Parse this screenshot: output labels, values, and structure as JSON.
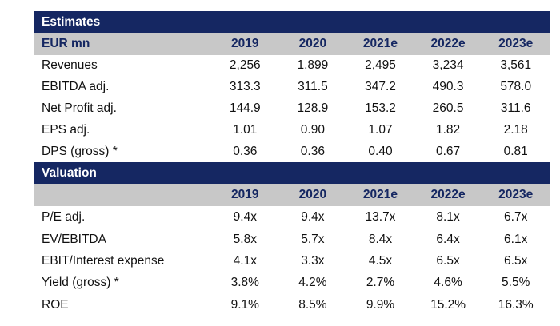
{
  "estimates": {
    "section_title": "Estimates",
    "header_label": "EUR mn",
    "years": [
      "2019",
      "2020",
      "2021e",
      "2022e",
      "2023e"
    ],
    "rows": [
      {
        "label": "Revenues",
        "values": [
          "2,256",
          "1,899",
          "2,495",
          "3,234",
          "3,561"
        ]
      },
      {
        "label": "EBITDA adj.",
        "values": [
          "313.3",
          "311.5",
          "347.2",
          "490.3",
          "578.0"
        ]
      },
      {
        "label": "Net Profit adj.",
        "values": [
          "144.9",
          "128.9",
          "153.2",
          "260.5",
          "311.6"
        ]
      },
      {
        "label": "EPS adj.",
        "values": [
          "1.01",
          "0.90",
          "1.07",
          "1.82",
          "2.18"
        ]
      },
      {
        "label": "DPS (gross) *",
        "values": [
          "0.36",
          "0.36",
          "0.40",
          "0.67",
          "0.81"
        ]
      }
    ]
  },
  "valuation": {
    "section_title": "Valuation",
    "header_label": "",
    "years": [
      "2019",
      "2020",
      "2021e",
      "2022e",
      "2023e"
    ],
    "rows": [
      {
        "label": "P/E adj.",
        "values": [
          "9.4x",
          "9.4x",
          "13.7x",
          "8.1x",
          "6.7x"
        ]
      },
      {
        "label": "EV/EBITDA",
        "values": [
          "5.8x",
          "5.7x",
          "8.4x",
          "6.4x",
          "6.1x"
        ]
      },
      {
        "label": "EBIT/Interest expense",
        "values": [
          "4.1x",
          "3.3x",
          "4.5x",
          "6.5x",
          "6.5x"
        ]
      },
      {
        "label": "Yield (gross) *",
        "values": [
          "3.8%",
          "4.2%",
          "2.7%",
          "4.6%",
          "5.5%"
        ]
      },
      {
        "label": "ROE",
        "values": [
          "9.1%",
          "8.5%",
          "9.9%",
          "15.2%",
          "16.3%"
        ]
      }
    ]
  }
}
